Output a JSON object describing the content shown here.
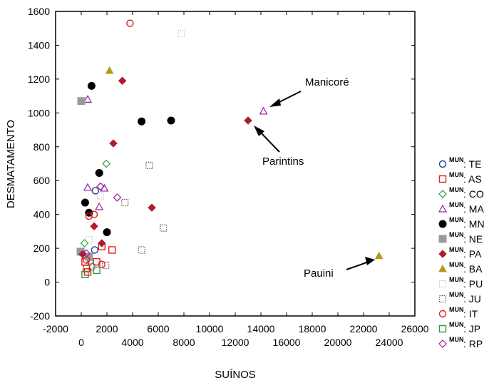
{
  "chart_data": {
    "type": "scatter",
    "xlabel": "SUÍNOS",
    "ylabel": "DESMATAMENTO",
    "xlim": [
      -2000,
      26000
    ],
    "ylim": [
      -200,
      1600
    ],
    "x_tick_labels_top": [
      "-2000",
      "2000",
      "6000",
      "10000",
      "14000",
      "18000",
      "22000",
      "26000"
    ],
    "x_tick_labels_bottom": [
      "0",
      "4000",
      "8000",
      "12000",
      "16000",
      "20000",
      "24000"
    ],
    "y_tick_labels": [
      "1600",
      "1400",
      "1200",
      "1000",
      "800",
      "600",
      "400",
      "200",
      "0",
      "-200"
    ],
    "grid": false,
    "legend_position": "right",
    "legend_prefix": "MUN",
    "series": [
      {
        "name": ": TE",
        "marker": "circle-open",
        "color": "#1f3f8f",
        "points": [
          [
            1100,
            540
          ],
          [
            1050,
            190
          ]
        ]
      },
      {
        "name": ": AS",
        "marker": "square-open",
        "color": "#e01c1c",
        "points": [
          [
            300,
            120
          ],
          [
            400,
            80
          ],
          [
            1600,
            210
          ],
          [
            2400,
            190
          ],
          [
            500,
            60
          ],
          [
            1200,
            120
          ]
        ]
      },
      {
        "name": ": CO",
        "marker": "diamond-open",
        "color": "#2e9a3c",
        "points": [
          [
            1950,
            700
          ],
          [
            250,
            230
          ],
          [
            700,
            120
          ]
        ]
      },
      {
        "name": ": MA",
        "marker": "triangle-open",
        "color": "#9b1f9b",
        "points": [
          [
            500,
            1080
          ],
          [
            14200,
            1010
          ],
          [
            500,
            560
          ],
          [
            1400,
            445
          ],
          [
            1800,
            555
          ],
          [
            150,
            175
          ]
        ]
      },
      {
        "name": ": MN",
        "marker": "circle-filled",
        "color": "#000000",
        "points": [
          [
            800,
            1160
          ],
          [
            4700,
            950
          ],
          [
            7000,
            955
          ],
          [
            1400,
            645
          ],
          [
            300,
            470
          ],
          [
            600,
            410
          ],
          [
            2000,
            295
          ]
        ]
      },
      {
        "name": ": NE",
        "marker": "square-filled",
        "color": "#9a9a9a",
        "points": [
          [
            0,
            1070
          ],
          [
            -50,
            180
          ],
          [
            600,
            150
          ]
        ]
      },
      {
        "name": ": PA",
        "marker": "diamond-filled",
        "color": "#b01b2b",
        "points": [
          [
            3200,
            1190
          ],
          [
            13000,
            955
          ],
          [
            2500,
            820
          ],
          [
            5500,
            440
          ],
          [
            1000,
            330
          ],
          [
            1600,
            230
          ],
          [
            100,
            165
          ]
        ]
      },
      {
        "name": ": BA",
        "marker": "triangle-filled",
        "color": "#b09a1a",
        "points": [
          [
            2200,
            1250
          ],
          [
            23200,
            155
          ]
        ]
      },
      {
        "name": ": PU",
        "marker": "dotted-square",
        "color": "#9a9a9a",
        "points": [
          [
            7800,
            1470
          ],
          [
            600,
            250
          ],
          [
            1500,
            510
          ]
        ]
      },
      {
        "name": ": JU",
        "marker": "dotted-square-dark",
        "color": "#555555",
        "points": [
          [
            5300,
            690
          ],
          [
            3400,
            470
          ],
          [
            6400,
            320
          ],
          [
            4700,
            190
          ],
          [
            1900,
            100
          ],
          [
            800,
            90
          ]
        ]
      },
      {
        "name": ": IT",
        "marker": "circle-open",
        "color": "#e01c1c",
        "points": [
          [
            3800,
            1530
          ],
          [
            600,
            390
          ],
          [
            1000,
            400
          ],
          [
            1600,
            105
          ],
          [
            400,
            130
          ]
        ]
      },
      {
        "name": ": JP",
        "marker": "square-open",
        "color": "#2e9a3c",
        "points": [
          [
            300,
            45
          ],
          [
            1200,
            70
          ]
        ]
      },
      {
        "name": ": RP",
        "marker": "diamond-open",
        "color": "#9b1f9b",
        "points": [
          [
            1500,
            565
          ],
          [
            2800,
            500
          ],
          [
            400,
            170
          ]
        ]
      }
    ],
    "annotations": [
      {
        "text": "Manicoré",
        "target": [
          14200,
          1010
        ]
      },
      {
        "text": "Parintins",
        "target": [
          13000,
          955
        ]
      },
      {
        "text": "Pauini",
        "target": [
          23200,
          155
        ]
      }
    ]
  }
}
